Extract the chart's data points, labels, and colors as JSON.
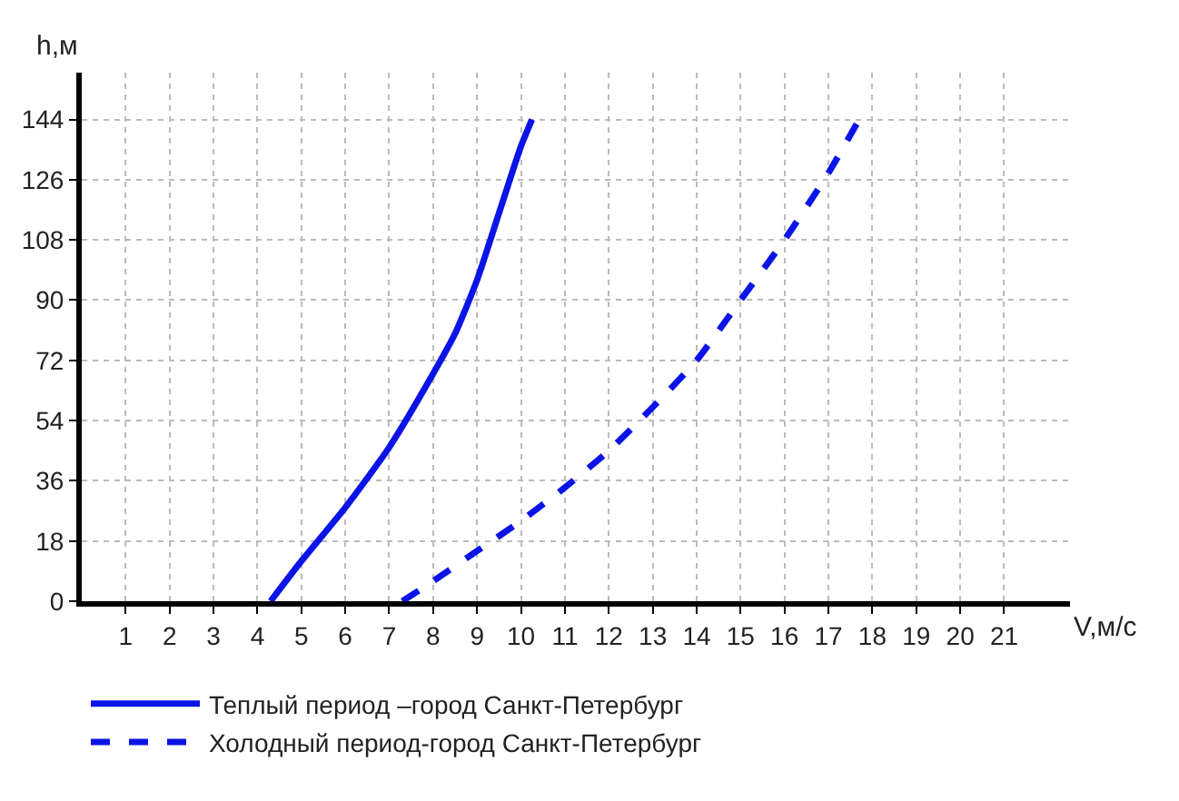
{
  "chart_data": {
    "type": "line",
    "xlabel": "V,м/с",
    "ylabel": "h,м",
    "xlim": [
      0,
      22.5
    ],
    "xticks": [
      1,
      2,
      3,
      4,
      5,
      6,
      7,
      8,
      9,
      10,
      11,
      12,
      13,
      14,
      15,
      16,
      17,
      18,
      19,
      20,
      21
    ],
    "ylim": [
      0,
      158
    ],
    "yticks": [
      0,
      18,
      36,
      54,
      72,
      90,
      108,
      126,
      144
    ],
    "grid": true,
    "legend": "bottom",
    "marker": "none",
    "series": [
      {
        "name": "Теплый период –город Санкт-Петербург",
        "color": "#0a14e6",
        "line_style": "solid",
        "x": [
          4.3,
          5,
          6,
          7,
          8,
          8.5,
          9,
          9.5,
          10,
          10.25
        ],
        "values": [
          0,
          12,
          28,
          46,
          68,
          80,
          96,
          116,
          136,
          144
        ]
      },
      {
        "name": "Холодный период-город Санкт-Петербург",
        "color": "#0a14e6",
        "line_style": "dashed",
        "x": [
          7.3,
          8,
          9,
          10,
          11,
          12,
          13,
          14,
          15,
          16,
          17,
          17.7
        ],
        "values": [
          0,
          6,
          15,
          24,
          34,
          45,
          58,
          72,
          90,
          108,
          128,
          144
        ]
      }
    ]
  }
}
